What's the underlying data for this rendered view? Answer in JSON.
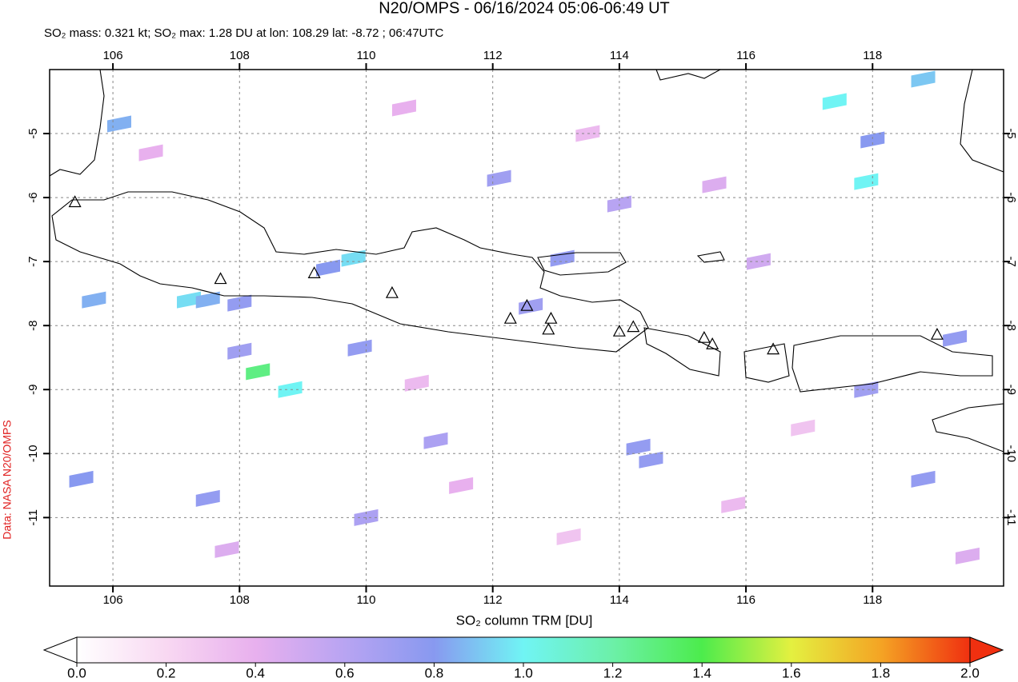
{
  "chart_data": {
    "type": "map",
    "title": "N20/OMPS - 06/16/2024 05:06-06:49 UT",
    "subtitle": "SO₂ mass: 0.321 kt; SO₂ max: 1.28 DU at lon: 108.29 lat: -8.72 ; 06:47UTC",
    "credit": "Data: NASA N20/OMPS",
    "colorbar_label": "SO₂ column TRM [DU]",
    "xlim": [
      105.0,
      120.07
    ],
    "ylim": [
      -12.07,
      -4.0
    ],
    "xticks": [
      106,
      108,
      110,
      112,
      114,
      116,
      118
    ],
    "yticks": [
      -5,
      -6,
      -7,
      -8,
      -9,
      -10,
      -11
    ],
    "grid": true,
    "clim": [
      0,
      2
    ],
    "cticks": [
      {
        "value": 0,
        "label": "0.0"
      },
      {
        "value": 0.2,
        "label": "0.2"
      },
      {
        "value": 0.4,
        "label": "0.4"
      },
      {
        "value": 0.6,
        "label": "0.6"
      },
      {
        "value": 0.8,
        "label": "0.8"
      },
      {
        "value": 1,
        "label": "1.0"
      },
      {
        "value": 1.2,
        "label": "1.2"
      },
      {
        "value": 1.4,
        "label": "1.4"
      },
      {
        "value": 1.6,
        "label": "1.6"
      },
      {
        "value": 1.8,
        "label": "1.8"
      },
      {
        "value": 2,
        "label": "2.0"
      }
    ],
    "colormap": [
      "#ffffff",
      "#f8d8f2",
      "#e8b0ee",
      "#b8a4f2",
      "#8899f0",
      "#70f4f4",
      "#6cf0a8",
      "#4cec4c",
      "#e4f040",
      "#f4a424",
      "#f03010"
    ],
    "pixels": [
      {
        "lon": 108.29,
        "lat": -8.72,
        "value": 1.28
      },
      {
        "lon": 108.8,
        "lat": -9.0,
        "value": 1.0
      },
      {
        "lon": 109.8,
        "lat": -6.95,
        "value": 0.95
      },
      {
        "lon": 107.2,
        "lat": -7.6,
        "value": 0.95
      },
      {
        "lon": 107.5,
        "lat": -7.6,
        "value": 0.85
      },
      {
        "lon": 118.8,
        "lat": -4.15,
        "value": 0.9
      },
      {
        "lon": 117.4,
        "lat": -4.5,
        "value": 1.0
      },
      {
        "lon": 117.9,
        "lat": -5.75,
        "value": 1.0
      },
      {
        "lon": 106.1,
        "lat": -4.85,
        "value": 0.85
      },
      {
        "lon": 105.7,
        "lat": -7.6,
        "value": 0.85
      },
      {
        "lon": 105.5,
        "lat": -10.4,
        "value": 0.8
      },
      {
        "lon": 109.9,
        "lat": -8.35,
        "value": 0.75
      },
      {
        "lon": 108.0,
        "lat": -8.4,
        "value": 0.7
      },
      {
        "lon": 112.1,
        "lat": -5.7,
        "value": 0.7
      },
      {
        "lon": 112.6,
        "lat": -7.7,
        "value": 0.7
      },
      {
        "lon": 111.1,
        "lat": -9.8,
        "value": 0.65
      },
      {
        "lon": 114.3,
        "lat": -9.9,
        "value": 0.75
      },
      {
        "lon": 114.5,
        "lat": -10.1,
        "value": 0.75
      },
      {
        "lon": 118.0,
        "lat": -5.1,
        "value": 0.8
      },
      {
        "lon": 119.3,
        "lat": -8.2,
        "value": 0.75
      },
      {
        "lon": 117.9,
        "lat": -9.0,
        "value": 0.7
      },
      {
        "lon": 113.1,
        "lat": -6.95,
        "value": 0.75
      },
      {
        "lon": 109.4,
        "lat": -7.1,
        "value": 0.8
      },
      {
        "lon": 108.0,
        "lat": -7.65,
        "value": 0.75
      },
      {
        "lon": 107.5,
        "lat": -10.7,
        "value": 0.75
      },
      {
        "lon": 110.0,
        "lat": -11.0,
        "value": 0.65
      },
      {
        "lon": 118.8,
        "lat": -10.4,
        "value": 0.75
      },
      {
        "lon": 114.0,
        "lat": -6.1,
        "value": 0.6
      },
      {
        "lon": 106.6,
        "lat": -5.3,
        "value": 0.4
      },
      {
        "lon": 110.6,
        "lat": -4.6,
        "value": 0.4
      },
      {
        "lon": 113.5,
        "lat": -5.0,
        "value": 0.35
      },
      {
        "lon": 115.5,
        "lat": -5.8,
        "value": 0.45
      },
      {
        "lon": 116.2,
        "lat": -7.0,
        "value": 0.5
      },
      {
        "lon": 111.5,
        "lat": -10.5,
        "value": 0.4
      },
      {
        "lon": 115.8,
        "lat": -10.8,
        "value": 0.35
      },
      {
        "lon": 107.8,
        "lat": -11.5,
        "value": 0.45
      },
      {
        "lon": 113.2,
        "lat": -11.3,
        "value": 0.3
      },
      {
        "lon": 119.5,
        "lat": -11.6,
        "value": 0.45
      },
      {
        "lon": 116.9,
        "lat": -9.6,
        "value": 0.3
      },
      {
        "lon": 110.8,
        "lat": -8.9,
        "value": 0.35
      }
    ],
    "volcanoes": [
      [
        105.4,
        -6.08
      ],
      [
        107.7,
        -7.28
      ],
      [
        109.18,
        -7.19
      ],
      [
        110.41,
        -7.5
      ],
      [
        112.28,
        -7.9
      ],
      [
        112.54,
        -7.7
      ],
      [
        112.92,
        -7.9
      ],
      [
        112.88,
        -8.07
      ],
      [
        114.0,
        -8.1
      ],
      [
        114.22,
        -8.03
      ],
      [
        115.34,
        -8.2
      ],
      [
        115.47,
        -8.3
      ],
      [
        116.43,
        -8.38
      ],
      [
        119.02,
        -8.15
      ]
    ]
  }
}
